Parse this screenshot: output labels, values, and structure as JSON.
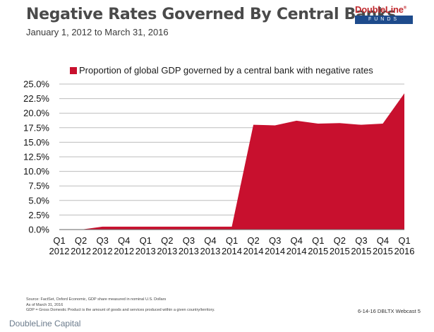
{
  "header": {
    "title": "Negative Rates Governed By Central Banks",
    "subtitle": "January 1, 2012 to March 31, 2016"
  },
  "logo": {
    "name": "DoubleLine",
    "trademark": "®",
    "sub": "FUNDS"
  },
  "colors": {
    "series": "#c8102e",
    "logo_red": "#c0282d",
    "logo_blue": "#1e4b8c",
    "gridline": "#bdbdbd"
  },
  "chart_data": {
    "type": "area",
    "title": "",
    "legend": [
      "Proportion of global GDP governed by a central bank with negative rates"
    ],
    "legend_position": "top-left",
    "grid": true,
    "categories": [
      {
        "q": "Q1",
        "y": "2012"
      },
      {
        "q": "Q2",
        "y": "2012"
      },
      {
        "q": "Q3",
        "y": "2012"
      },
      {
        "q": "Q4",
        "y": "2012"
      },
      {
        "q": "Q1",
        "y": "2013"
      },
      {
        "q": "Q2",
        "y": "2013"
      },
      {
        "q": "Q3",
        "y": "2013"
      },
      {
        "q": "Q4",
        "y": "2013"
      },
      {
        "q": "Q1",
        "y": "2014"
      },
      {
        "q": "Q2",
        "y": "2014"
      },
      {
        "q": "Q3",
        "y": "2014"
      },
      {
        "q": "Q4",
        "y": "2014"
      },
      {
        "q": "Q1",
        "y": "2015"
      },
      {
        "q": "Q2",
        "y": "2015"
      },
      {
        "q": "Q3",
        "y": "2015"
      },
      {
        "q": "Q4",
        "y": "2015"
      },
      {
        "q": "Q1",
        "y": "2016"
      }
    ],
    "values": [
      0.0,
      0.0,
      0.5,
      0.5,
      0.5,
      0.5,
      0.5,
      0.5,
      0.5,
      18.0,
      17.9,
      18.7,
      18.2,
      18.3,
      18.0,
      18.2,
      23.4
    ],
    "yticks": [
      "0.0%",
      "2.5%",
      "5.0%",
      "7.5%",
      "10.0%",
      "12.5%",
      "15.0%",
      "17.5%",
      "20.0%",
      "22.5%",
      "25.0%"
    ],
    "ylim": [
      0,
      25
    ],
    "xlabel": "",
    "ylabel": ""
  },
  "footnotes": {
    "source": "Source: FactSet, Oxford Economic, GDP share measured in nominal U.S. Dollars",
    "asof": "As of  March 31, 2016",
    "gdp": "GDP = Gross Domestic Product is the amount of goods and services produced within a given country/territory."
  },
  "webcast": "6-14-16 DBLTX Webcast 5",
  "company": "DoubleLine Capital"
}
